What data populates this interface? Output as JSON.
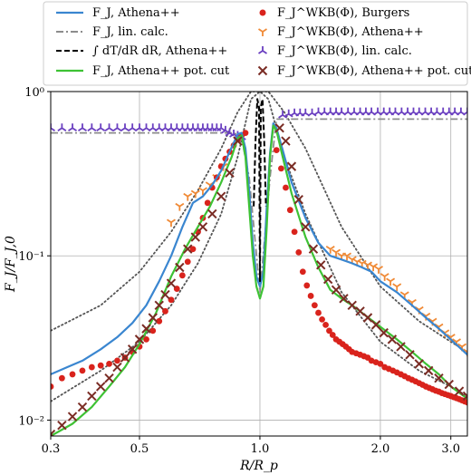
{
  "chart_data": {
    "type": "line",
    "xlabel": "R/R_p",
    "ylabel": "F_J/F_J,0",
    "xscale": "log",
    "yscale": "log",
    "xlim": [
      0.3,
      3.3
    ],
    "ylim": [
      0.008,
      1.0
    ],
    "grid": true,
    "legend_position": "top (two columns)",
    "x_ticks": [
      {
        "value": 0.3,
        "label": "0.3"
      },
      {
        "value": 0.5,
        "label": "0.5"
      },
      {
        "value": 1.0,
        "label": "1.0"
      },
      {
        "value": 2.0,
        "label": "2.0"
      },
      {
        "value": 3.0,
        "label": "3.0"
      }
    ],
    "y_ticks": [
      {
        "value": 0.01,
        "label": "10⁻²"
      },
      {
        "value": 0.1,
        "label": "10⁻¹"
      },
      {
        "value": 1.0,
        "label": "10⁰"
      }
    ],
    "series": [
      {
        "name": "F_J, Athena++",
        "style": "line",
        "color": "#3a86d0",
        "x": [
          0.3,
          0.33,
          0.36,
          0.4,
          0.44,
          0.48,
          0.52,
          0.56,
          0.6,
          0.64,
          0.68,
          0.72,
          0.76,
          0.8,
          0.84,
          0.88,
          0.9,
          0.92,
          0.94,
          0.96,
          0.98,
          1.0,
          1.02,
          1.04,
          1.06,
          1.08,
          1.1,
          1.14,
          1.2,
          1.3,
          1.4,
          1.5,
          1.6,
          1.7,
          1.8,
          1.9,
          2.0,
          2.2,
          2.4,
          2.6,
          2.8,
          3.0,
          3.3
        ],
        "y": [
          0.019,
          0.021,
          0.023,
          0.027,
          0.032,
          0.039,
          0.05,
          0.07,
          0.1,
          0.15,
          0.21,
          0.23,
          0.27,
          0.33,
          0.43,
          0.55,
          0.56,
          0.45,
          0.25,
          0.12,
          0.075,
          0.065,
          0.08,
          0.2,
          0.42,
          0.64,
          0.6,
          0.44,
          0.28,
          0.17,
          0.12,
          0.1,
          0.095,
          0.09,
          0.085,
          0.08,
          0.07,
          0.06,
          0.05,
          0.042,
          0.036,
          0.031,
          0.025
        ]
      },
      {
        "name": "F_J, lin. calc.",
        "style": "dashdot",
        "color": "#8c8c8c",
        "x": [
          0.3,
          0.85,
          0.88,
          0.9,
          0.94,
          1.0,
          1.06,
          1.1,
          1.2,
          3.3
        ],
        "y": [
          0.56,
          0.56,
          0.55,
          0.52,
          0.3,
          0.06,
          0.3,
          0.68,
          0.68,
          0.68
        ]
      },
      {
        "name": "∫ dT/dR dR, Athena++",
        "style": "dashed",
        "color": "#000000",
        "x": [
          0.965,
          0.975,
          0.985,
          0.995,
          1.0,
          1.005,
          1.015,
          1.025,
          1.035
        ],
        "y": [
          0.2,
          0.5,
          0.9,
          0.8,
          0.07,
          0.8,
          0.9,
          0.5,
          0.2
        ]
      },
      {
        "name": "F_J, Athena++ pot. cut",
        "style": "line",
        "color": "#3ec234",
        "x": [
          0.3,
          0.34,
          0.38,
          0.42,
          0.46,
          0.5,
          0.55,
          0.6,
          0.65,
          0.7,
          0.75,
          0.8,
          0.85,
          0.88,
          0.9,
          0.92,
          0.94,
          0.96,
          0.98,
          1.0,
          1.02,
          1.04,
          1.06,
          1.08,
          1.1,
          1.14,
          1.2,
          1.3,
          1.4,
          1.5,
          1.6,
          1.7,
          1.8,
          2.0,
          2.2,
          2.4,
          2.6,
          2.8,
          3.0,
          3.3
        ],
        "y": [
          0.008,
          0.0095,
          0.012,
          0.016,
          0.021,
          0.029,
          0.045,
          0.075,
          0.11,
          0.15,
          0.2,
          0.28,
          0.4,
          0.52,
          0.54,
          0.4,
          0.2,
          0.1,
          0.065,
          0.055,
          0.065,
          0.15,
          0.4,
          0.62,
          0.58,
          0.4,
          0.24,
          0.13,
          0.085,
          0.062,
          0.055,
          0.05,
          0.045,
          0.037,
          0.031,
          0.026,
          0.022,
          0.019,
          0.016,
          0.0135
        ]
      },
      {
        "name": "F_J^WKB(Φ), Burgers",
        "style": "dots",
        "color": "#d9231c",
        "x": [
          0.3,
          0.32,
          0.34,
          0.36,
          0.38,
          0.4,
          0.42,
          0.44,
          0.46,
          0.48,
          0.5,
          0.52,
          0.54,
          0.56,
          0.58,
          0.6,
          0.62,
          0.64,
          0.66,
          0.68,
          0.7,
          0.72,
          0.74,
          0.76,
          0.78,
          0.8,
          0.82,
          0.84,
          0.86,
          0.88,
          0.9,
          0.92,
          1.1,
          1.13,
          1.16,
          1.19,
          1.22,
          1.25,
          1.28,
          1.31,
          1.34,
          1.37,
          1.4,
          1.43,
          1.46,
          1.49,
          1.52,
          1.55,
          1.58,
          1.61,
          1.64,
          1.67,
          1.7,
          1.74,
          1.78,
          1.82,
          1.86,
          1.9,
          1.95,
          2.0,
          2.05,
          2.1,
          2.15,
          2.2,
          2.25,
          2.3,
          2.35,
          2.4,
          2.45,
          2.5,
          2.55,
          2.6,
          2.65,
          2.7,
          2.75,
          2.8,
          2.85,
          2.9,
          2.95,
          3.0,
          3.05,
          3.1,
          3.15,
          3.2,
          3.25,
          3.3
        ],
        "y": [
          0.016,
          0.018,
          0.019,
          0.02,
          0.021,
          0.0215,
          0.022,
          0.023,
          0.024,
          0.026,
          0.028,
          0.031,
          0.035,
          0.04,
          0.046,
          0.054,
          0.063,
          0.076,
          0.092,
          0.11,
          0.14,
          0.17,
          0.21,
          0.26,
          0.3,
          0.35,
          0.39,
          0.43,
          0.47,
          0.51,
          0.54,
          0.56,
          0.44,
          0.34,
          0.26,
          0.19,
          0.14,
          0.105,
          0.08,
          0.066,
          0.057,
          0.05,
          0.045,
          0.041,
          0.038,
          0.035,
          0.033,
          0.031,
          0.03,
          0.029,
          0.028,
          0.027,
          0.026,
          0.0255,
          0.025,
          0.0245,
          0.024,
          0.023,
          0.0225,
          0.022,
          0.021,
          0.0205,
          0.02,
          0.0195,
          0.019,
          0.0185,
          0.018,
          0.0176,
          0.0172,
          0.0168,
          0.0164,
          0.016,
          0.0157,
          0.0154,
          0.0151,
          0.0149,
          0.0146,
          0.0144,
          0.0142,
          0.014,
          0.0138,
          0.0136,
          0.0134,
          0.0132,
          0.013,
          0.0128
        ]
      },
      {
        "name": "F_J^WKB(Φ), Athena++",
        "style": "marker-tri-down",
        "color": "#f08a36",
        "x": [
          0.6,
          0.63,
          0.66,
          0.69,
          0.72,
          0.75,
          0.78,
          0.81,
          1.5,
          1.55,
          1.6,
          1.65,
          1.7,
          1.75,
          1.8,
          1.86,
          1.92,
          1.98,
          2.05,
          2.12,
          2.2,
          2.3,
          2.4,
          2.5,
          2.6,
          2.7,
          2.8,
          2.9,
          3.0,
          3.1,
          3.2,
          3.3
        ],
        "y": [
          0.16,
          0.2,
          0.23,
          0.24,
          0.25,
          0.27,
          0.3,
          0.35,
          0.11,
          0.105,
          0.1,
          0.1,
          0.095,
          0.092,
          0.09,
          0.088,
          0.086,
          0.083,
          0.075,
          0.07,
          0.065,
          0.058,
          0.052,
          0.047,
          0.043,
          0.04,
          0.037,
          0.034,
          0.032,
          0.03,
          0.028,
          0.026
        ]
      },
      {
        "name": "F_J^WKB(Φ), lin. calc.",
        "style": "marker-tri-up",
        "color": "#6a3fc0",
        "x": [
          0.3,
          0.32,
          0.34,
          0.36,
          0.38,
          0.4,
          0.42,
          0.44,
          0.46,
          0.48,
          0.5,
          0.52,
          0.54,
          0.56,
          0.58,
          0.6,
          0.62,
          0.64,
          0.66,
          0.68,
          0.7,
          0.72,
          0.74,
          0.76,
          0.78,
          0.8,
          0.82,
          0.84,
          0.86,
          0.88,
          0.9,
          1.14,
          1.18,
          1.22,
          1.26,
          1.3,
          1.35,
          1.4,
          1.45,
          1.5,
          1.55,
          1.6,
          1.66,
          1.72,
          1.78,
          1.84,
          1.9,
          1.97,
          2.04,
          2.11,
          2.18,
          2.26,
          2.34,
          2.42,
          2.5,
          2.59,
          2.68,
          2.77,
          2.87,
          2.97,
          3.07,
          3.18,
          3.3
        ],
        "y": [
          0.6,
          0.6,
          0.6,
          0.6,
          0.6,
          0.6,
          0.6,
          0.6,
          0.6,
          0.6,
          0.6,
          0.6,
          0.6,
          0.6,
          0.6,
          0.6,
          0.6,
          0.6,
          0.6,
          0.6,
          0.6,
          0.6,
          0.6,
          0.6,
          0.6,
          0.6,
          0.58,
          0.56,
          0.55,
          0.54,
          0.53,
          0.72,
          0.73,
          0.74,
          0.74,
          0.74,
          0.74,
          0.75,
          0.75,
          0.75,
          0.75,
          0.75,
          0.75,
          0.75,
          0.75,
          0.75,
          0.75,
          0.75,
          0.75,
          0.75,
          0.75,
          0.75,
          0.75,
          0.75,
          0.75,
          0.75,
          0.75,
          0.75,
          0.75,
          0.75,
          0.75,
          0.75,
          0.75
        ]
      },
      {
        "name": "F_J^WKB(Φ), Athena++ pot. cut",
        "style": "marker-x",
        "color": "#7a2c24",
        "x": [
          0.3,
          0.32,
          0.34,
          0.36,
          0.38,
          0.4,
          0.42,
          0.44,
          0.46,
          0.48,
          0.5,
          0.52,
          0.54,
          0.56,
          0.58,
          0.6,
          0.63,
          0.66,
          0.69,
          0.72,
          0.76,
          0.8,
          0.84,
          0.88,
          1.12,
          1.16,
          1.2,
          1.25,
          1.3,
          1.36,
          1.42,
          1.48,
          1.55,
          1.62,
          1.7,
          1.78,
          1.86,
          1.95,
          2.04,
          2.14,
          2.25,
          2.37,
          2.5,
          2.64,
          2.8,
          2.97,
          3.15,
          3.3
        ],
        "y": [
          0.0082,
          0.0093,
          0.0105,
          0.012,
          0.014,
          0.016,
          0.018,
          0.021,
          0.024,
          0.027,
          0.031,
          0.036,
          0.042,
          0.05,
          0.058,
          0.068,
          0.085,
          0.11,
          0.13,
          0.15,
          0.18,
          0.23,
          0.32,
          0.5,
          0.6,
          0.5,
          0.35,
          0.22,
          0.15,
          0.11,
          0.088,
          0.072,
          0.062,
          0.055,
          0.05,
          0.046,
          0.042,
          0.038,
          0.034,
          0.031,
          0.028,
          0.025,
          0.022,
          0.02,
          0.018,
          0.0165,
          0.015,
          0.014
        ]
      },
      {
        "name": "",
        "style": "dotted",
        "color": "#555555",
        "x": [
          0.3,
          0.4,
          0.5,
          0.6,
          0.7,
          0.8,
          0.88,
          0.95,
          1.0,
          1.05,
          1.15,
          1.3,
          1.6,
          2.0,
          2.5,
          3.0,
          3.3
        ],
        "y": [
          0.035,
          0.05,
          0.08,
          0.14,
          0.25,
          0.45,
          0.75,
          1.0,
          1.0,
          1.0,
          0.75,
          0.45,
          0.15,
          0.065,
          0.04,
          0.03,
          0.026
        ]
      },
      {
        "name": "",
        "style": "dotted",
        "color": "#555555",
        "x": [
          0.3,
          0.4,
          0.5,
          0.6,
          0.7,
          0.8,
          0.88,
          0.95,
          1.0,
          1.05,
          1.15,
          1.3,
          1.6,
          2.0,
          2.5,
          3.0,
          3.3
        ],
        "y": [
          0.013,
          0.02,
          0.03,
          0.05,
          0.09,
          0.18,
          0.4,
          0.9,
          1.0,
          0.9,
          0.4,
          0.18,
          0.06,
          0.03,
          0.02,
          0.016,
          0.014
        ]
      }
    ]
  },
  "legend": {
    "left": [
      {
        "key": "athena",
        "label": "F_J, Athena++"
      },
      {
        "key": "lin",
        "label": "F_J, lin. calc."
      },
      {
        "key": "integral",
        "label": "∫ dT/dR dR, Athena++"
      },
      {
        "key": "potcut",
        "label": "F_J, Athena++ pot. cut"
      }
    ],
    "right": [
      {
        "key": "burgers",
        "label": "F_J^WKB(Φ), Burgers"
      },
      {
        "key": "wkb_athena",
        "label": "F_J^WKB(Φ), Athena++"
      },
      {
        "key": "wkb_lin",
        "label": "F_J^WKB(Φ), lin. calc."
      },
      {
        "key": "wkb_potcut",
        "label": "F_J^WKB(Φ), Athena++ pot. cut"
      }
    ]
  }
}
